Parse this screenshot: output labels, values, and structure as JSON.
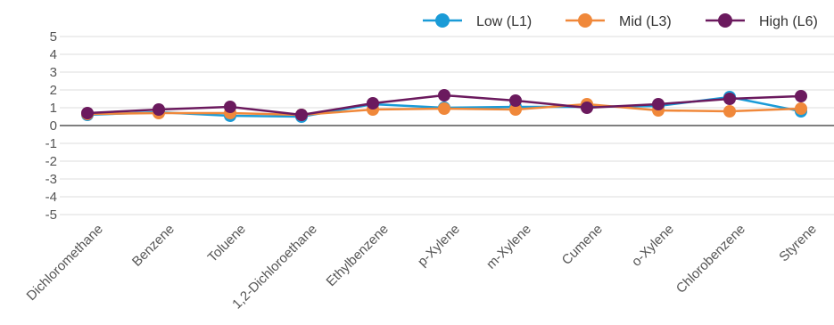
{
  "chart_data": {
    "type": "line",
    "categories": [
      "Dichloromethane",
      "Benzene",
      "Toluene",
      "1,2-Dichloroethane",
      "Ethylbenzene",
      "p-Xylene",
      "m-Xylene",
      "Cumene",
      "o-Xylene",
      "Chlorobenzene",
      "Styrene"
    ],
    "ylim": [
      -5,
      5
    ],
    "yticks": [
      5,
      4,
      3,
      2,
      1,
      0,
      -1,
      -2,
      -3,
      -4,
      -5
    ],
    "grid": true,
    "legend_position": "top-right",
    "series": [
      {
        "name": "Low (L1)",
        "color": "#1a9bd7",
        "values": [
          0.6,
          0.75,
          0.55,
          0.5,
          1.2,
          1.0,
          1.05,
          1.05,
          1.1,
          1.6,
          0.8
        ]
      },
      {
        "name": "Mid (L3)",
        "color": "#f0883a",
        "values": [
          0.65,
          0.7,
          0.7,
          0.6,
          0.9,
          0.95,
          0.9,
          1.2,
          0.85,
          0.8,
          0.95
        ]
      },
      {
        "name": "High (L6)",
        "color": "#6b1a5e",
        "values": [
          0.7,
          0.9,
          1.05,
          0.6,
          1.25,
          1.7,
          1.4,
          1.0,
          1.2,
          1.5,
          1.65
        ]
      }
    ]
  }
}
